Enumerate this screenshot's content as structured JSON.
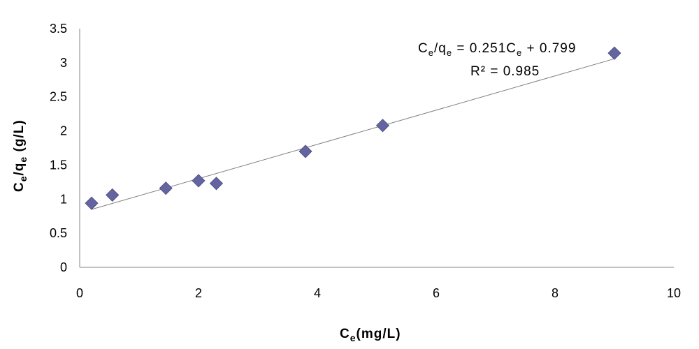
{
  "chart_data": {
    "type": "scatter",
    "title": "",
    "xlabel": {
      "main": "C",
      "sub": "e",
      "rest": "(mg/L)"
    },
    "ylabel": {
      "main": "C",
      "sub": "e",
      "mid": "/q",
      "sub2": "e",
      "rest": " (g/L)"
    },
    "xlim": [
      0,
      10
    ],
    "ylim": [
      0,
      3.5
    ],
    "xticks": [
      0,
      2,
      4,
      6,
      8,
      10
    ],
    "yticks": [
      0,
      0.5,
      1,
      1.5,
      2,
      2.5,
      3,
      3.5
    ],
    "xtick_labels": [
      "0",
      "2",
      "4",
      "6",
      "8",
      "10"
    ],
    "ytick_labels": [
      "0",
      "0.5",
      "1",
      "1.5",
      "2",
      "2.5",
      "3",
      "3.5"
    ],
    "grid": false,
    "legend": "none",
    "series": [
      {
        "marker": "diamond",
        "color": "#6464A0",
        "x": [
          0.2,
          0.55,
          1.45,
          2.0,
          2.3,
          3.8,
          5.1,
          9.0
        ],
        "y": [
          0.94,
          1.06,
          1.16,
          1.27,
          1.23,
          1.7,
          2.08,
          3.14
        ]
      }
    ],
    "trendline": {
      "slope": 0.251,
      "intercept": 0.799,
      "x_range": [
        0.2,
        9.0
      ],
      "color": "#808080"
    },
    "annotations": {
      "equation": {
        "lhs_main": "C",
        "lhs_sub": "e",
        "lhs_mid": "/q",
        "lhs_sub2": "e",
        "rhs": " = 0.251C",
        "rhs_sub": "e",
        "rhs_end": " + 0.799"
      },
      "r2": "R² = 0.985"
    }
  }
}
